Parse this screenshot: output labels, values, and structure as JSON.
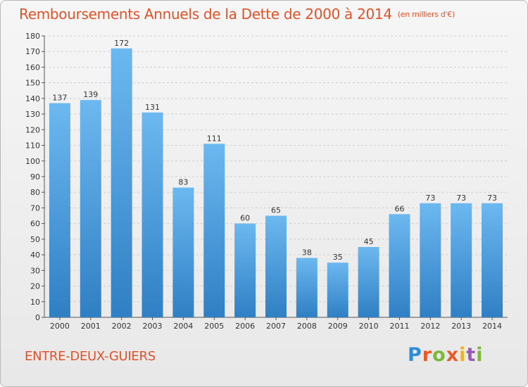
{
  "title": "Remboursements Annuels de la Dette de 2000 à 2014",
  "unit_note": "(en milliers d'€)",
  "commune": "ENTRE-DEUX-GUIERS",
  "logo_text": "Proxiti",
  "colors": {
    "title": "#e0522a",
    "bar_top": "#6cb8f0",
    "bar_bottom": "#2f7fc4",
    "grid": "#d0d0d0"
  },
  "chart_data": {
    "type": "bar",
    "categories": [
      "2000",
      "2001",
      "2002",
      "2003",
      "2004",
      "2005",
      "2006",
      "2007",
      "2008",
      "2009",
      "2010",
      "2011",
      "2012",
      "2013",
      "2014"
    ],
    "values": [
      137,
      139,
      172,
      131,
      83,
      111,
      60,
      65,
      38,
      35,
      45,
      66,
      73,
      73,
      73
    ],
    "data_labels": [
      "137",
      "139",
      "172",
      "131",
      "83",
      "111",
      "60",
      "65",
      "38",
      "35",
      "45",
      "66",
      "73",
      "73",
      "73"
    ],
    "y_ticks": [
      "0",
      "10",
      "20",
      "30",
      "40",
      "50",
      "60",
      "70",
      "80",
      "90",
      "100",
      "110",
      "120",
      "130",
      "140",
      "150",
      "160",
      "170",
      "180"
    ],
    "ylim": [
      0,
      180
    ],
    "grid": true,
    "xlabel": "",
    "ylabel": ""
  }
}
